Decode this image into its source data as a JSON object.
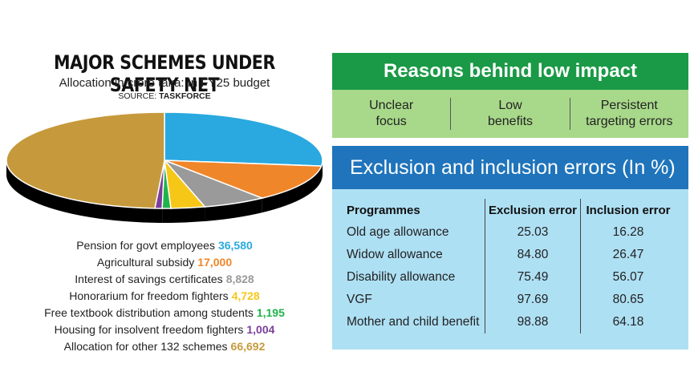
{
  "chart_data": {
    "type": "pie",
    "title": "MAJOR SCHEMES UNDER SAFETY NET",
    "subtitle": "Allocation in crore taka: In FY25 budget",
    "source_label": "SOURCE:",
    "source_name": "TASKFORCE",
    "slices": [
      {
        "label": "Pension for govt employees",
        "value": 36580,
        "display": "36,580",
        "color": "#29a9df"
      },
      {
        "label": "Agricultural subsidy",
        "value": 17000,
        "display": "17,000",
        "color": "#f0862a"
      },
      {
        "label": "Interest of savings certificates",
        "value": 8828,
        "display": "8,828",
        "color": "#9a9a9a"
      },
      {
        "label": "Honorarium for freedom fighters",
        "value": 4728,
        "display": "4,728",
        "color": "#f6c717"
      },
      {
        "label": "Free textbook distribution among students",
        "value": 1195,
        "display": "1,195",
        "color": "#1fb34a"
      },
      {
        "label": "Housing for insolvent freedom fighters",
        "value": 1004,
        "display": "1,004",
        "color": "#7b3f9b"
      },
      {
        "label": "Allocation for other 132 schemes",
        "value": 66692,
        "display": "66,692",
        "color": "#c69a3c"
      }
    ]
  },
  "reasons": {
    "title": "Reasons behind low impact",
    "items": [
      [
        "Unclear",
        "focus"
      ],
      [
        "Low",
        "benefits"
      ],
      [
        "Persistent",
        "targeting errors"
      ]
    ],
    "head_color": "#1a9a46",
    "body_color": "#a8d98a"
  },
  "errors": {
    "title": "Exclusion and inclusion errors (In %)",
    "headers": [
      "Programmes",
      "Exclusion error",
      "Inclusion error"
    ],
    "rows": [
      [
        "Old age allowance",
        "25.03",
        "16.28"
      ],
      [
        "Widow allowance",
        "84.80",
        "26.47"
      ],
      [
        "Disability allowance",
        "75.49",
        "56.07"
      ],
      [
        "VGF",
        "97.69",
        "80.65"
      ],
      [
        "Mother and child benefit",
        "98.88",
        "64.18"
      ]
    ],
    "head_color": "#1f74bb",
    "body_color": "#aee0f4"
  }
}
